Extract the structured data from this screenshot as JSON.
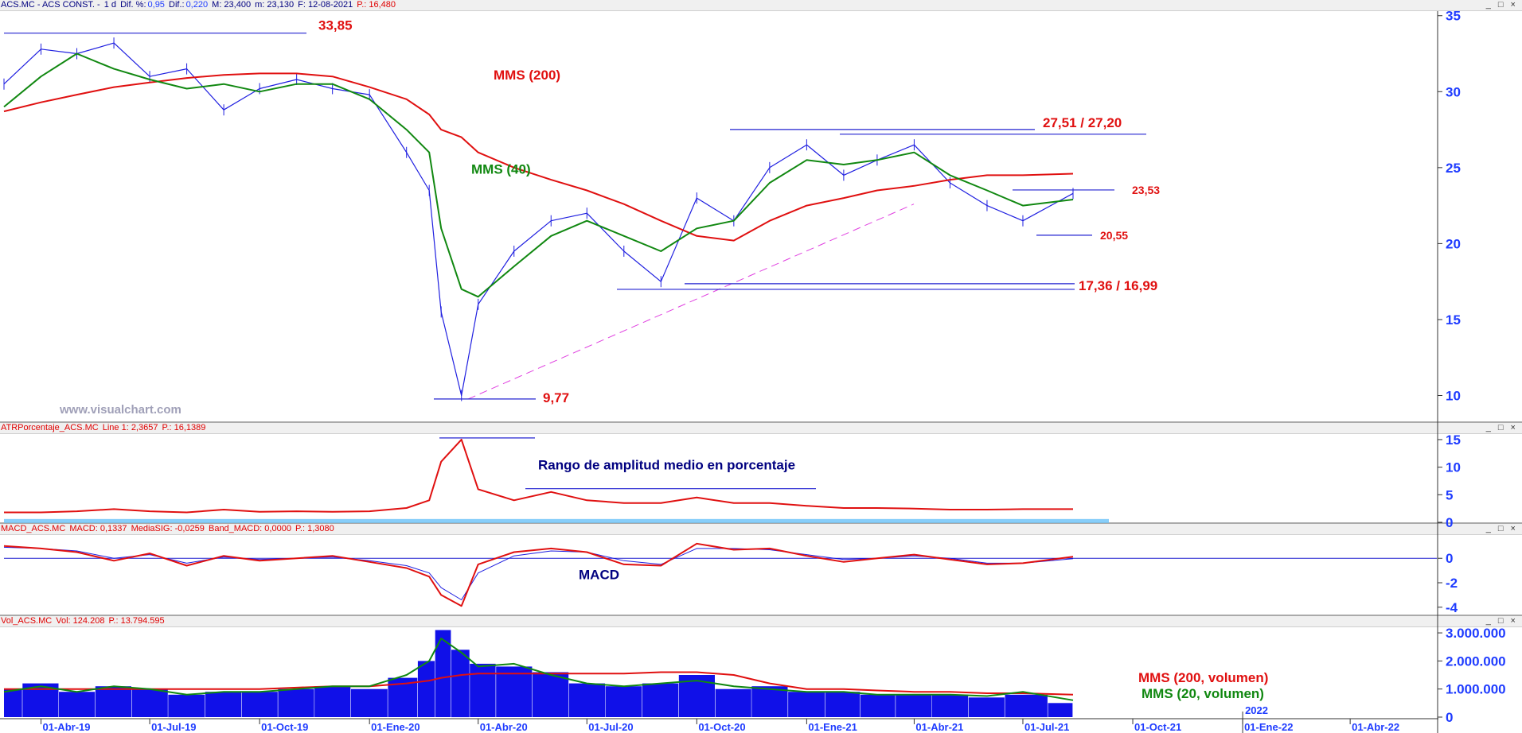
{
  "headers": {
    "price": {
      "symbol": "ACS.MC - ACS CONST. -",
      "interval": "1 d",
      "dif_pct_label": "Dif. %:",
      "dif_pct": "0,95",
      "dif_label": "Dif.:",
      "dif": "0,220",
      "max": "M: 23,400",
      "min": "m: 23,130",
      "date": "F: 12-08-2021",
      "price": "P.: 16,480"
    },
    "atr": {
      "name": "ATRPorcentaje_ACS.MC",
      "line": "Line 1: 2,3657",
      "price": "P.: 16,1389"
    },
    "macd": {
      "name": "MACD_ACS.MC",
      "macd": "MACD: 0,1337",
      "signal": "MediaSIG: -0,0259",
      "band": "Band_MACD: 0,0000",
      "price": "P.: 1,3080"
    },
    "vol": {
      "name": "Vol_ACS.MC",
      "vol": "Vol: 124.208",
      "price": "P.: 13.794.595"
    }
  },
  "window_buttons": "_ □ ×",
  "watermark": "www.visualchart.com",
  "chart_data": [
    {
      "panel": "price",
      "type": "line",
      "x": [
        "2019-03-01",
        "2019-04-01",
        "2019-05-01",
        "2019-06-01",
        "2019-07-01",
        "2019-08-01",
        "2019-09-01",
        "2019-10-01",
        "2019-11-01",
        "2019-12-01",
        "2020-01-01",
        "2020-02-01",
        "2020-02-20",
        "2020-03-01",
        "2020-03-18",
        "2020-04-01",
        "2020-05-01",
        "2020-06-01",
        "2020-07-01",
        "2020-08-01",
        "2020-09-01",
        "2020-10-01",
        "2020-11-01",
        "2020-12-01",
        "2021-01-01",
        "2021-02-01",
        "2021-03-01",
        "2021-04-01",
        "2021-05-01",
        "2021-06-01",
        "2021-07-01",
        "2021-08-12"
      ],
      "x_ticks": [
        "01-Abr-19",
        "01-Jul-19",
        "01-Oct-19",
        "01-Ene-20",
        "01-Abr-20",
        "01-Jul-20",
        "01-Oct-20",
        "01-Ene-21",
        "01-Abr-21",
        "01-Jul-21",
        "01-Oct-21",
        "2022",
        "01-Ene-22",
        "01-Abr-22"
      ],
      "y_ticks": [
        10,
        15,
        20,
        25,
        30,
        35
      ],
      "ylim": [
        8.3,
        35.3
      ],
      "series": [
        {
          "name": "",
          "color": "#1f1fe0",
          "values": [
            30.5,
            32.8,
            32.5,
            33.2,
            31.0,
            31.5,
            28.8,
            30.2,
            30.8,
            30.2,
            29.8,
            26.0,
            23.5,
            15.5,
            10.0,
            16.0,
            19.5,
            21.5,
            22.0,
            19.5,
            17.5,
            23.0,
            21.5,
            25.0,
            26.5,
            24.5,
            25.5,
            26.5,
            24.0,
            22.5,
            21.5,
            23.3
          ]
        },
        {
          "name": "MMS (40)",
          "color": "#118811",
          "values": [
            29.0,
            31.0,
            32.5,
            31.5,
            30.8,
            30.2,
            30.5,
            30.0,
            30.5,
            30.5,
            29.5,
            27.5,
            26.0,
            21.0,
            17.0,
            16.5,
            18.5,
            20.5,
            21.5,
            20.5,
            19.5,
            21.0,
            21.5,
            24.0,
            25.5,
            25.2,
            25.5,
            26.0,
            24.5,
            23.5,
            22.5,
            22.9
          ]
        },
        {
          "name": "MMS (200)",
          "color": "#e01010",
          "values": [
            28.7,
            29.3,
            29.8,
            30.3,
            30.6,
            30.9,
            31.1,
            31.2,
            31.2,
            31.0,
            30.3,
            29.5,
            28.5,
            27.5,
            27.0,
            26.0,
            25.0,
            24.2,
            23.5,
            22.6,
            21.5,
            20.5,
            20.2,
            21.5,
            22.5,
            23.0,
            23.5,
            23.8,
            24.2,
            24.5,
            24.5,
            24.6
          ]
        }
      ],
      "levels": [
        {
          "label": "33,85",
          "value": 33.85
        },
        {
          "label": "27,51 / 27,20",
          "values": [
            27.51,
            27.2
          ]
        },
        {
          "label": "23,53",
          "value": 23.53
        },
        {
          "label": "20,55",
          "value": 20.55
        },
        {
          "label": "17,36 / 16,99",
          "values": [
            17.36,
            16.99
          ]
        },
        {
          "label": "9,77",
          "value": 9.77
        }
      ],
      "annotations": [
        "MMS (200)",
        "MMS (40)"
      ]
    },
    {
      "panel": "atr",
      "type": "line",
      "y_ticks": [
        0,
        5,
        10,
        15
      ],
      "ylim": [
        0,
        16
      ],
      "annotation": "Rango de amplitud medio en porcentaje",
      "series": [
        {
          "name": "",
          "color": "#e01010",
          "values": [
            1.8,
            1.8,
            2.0,
            2.4,
            2.0,
            1.8,
            2.3,
            1.9,
            2.0,
            1.9,
            2.0,
            2.6,
            4.0,
            11.0,
            15.0,
            6.0,
            4.0,
            5.5,
            4.0,
            3.5,
            3.5,
            4.5,
            3.5,
            3.5,
            3.0,
            2.6,
            2.6,
            2.5,
            2.3,
            2.3,
            2.4,
            2.4
          ]
        }
      ]
    },
    {
      "panel": "macd",
      "type": "line",
      "y_ticks": [
        -4,
        -2,
        0
      ],
      "ylim": [
        -4.6,
        1.9
      ],
      "annotation": "MACD",
      "series": [
        {
          "name": "",
          "color": "#e01010",
          "values": [
            1.0,
            0.8,
            0.5,
            -0.2,
            0.4,
            -0.6,
            0.2,
            -0.2,
            0.0,
            0.2,
            -0.3,
            -0.8,
            -1.5,
            -3.0,
            -3.9,
            -0.5,
            0.5,
            0.8,
            0.5,
            -0.5,
            -0.6,
            1.2,
            0.7,
            0.8,
            0.2,
            -0.3,
            0.0,
            0.3,
            -0.1,
            -0.5,
            -0.4,
            0.13
          ]
        },
        {
          "name": "",
          "color": "#1f1fe0",
          "values": [
            0.9,
            0.8,
            0.6,
            0.0,
            0.3,
            -0.4,
            0.1,
            -0.1,
            0.0,
            0.1,
            -0.2,
            -0.6,
            -1.2,
            -2.4,
            -3.4,
            -1.2,
            0.2,
            0.6,
            0.5,
            -0.2,
            -0.5,
            0.8,
            0.8,
            0.7,
            0.3,
            -0.1,
            0.0,
            0.2,
            0.0,
            -0.4,
            -0.4,
            -0.03
          ]
        }
      ]
    },
    {
      "panel": "volume",
      "type": "bar",
      "y_ticks": [
        0,
        1000000,
        2000000,
        3000000
      ],
      "y_tick_labels": [
        "0",
        "1.000.000",
        "2.000.000",
        "3.000.000"
      ],
      "ylim": [
        0,
        3200000
      ],
      "bars": [
        1.0,
        1.2,
        0.9,
        1.1,
        1.0,
        0.8,
        0.9,
        0.9,
        1.0,
        1.1,
        1.0,
        1.4,
        2.0,
        3.1,
        2.4,
        1.9,
        1.8,
        1.6,
        1.2,
        1.1,
        1.2,
        1.5,
        1.0,
        1.1,
        0.9,
        0.9,
        0.8,
        0.8,
        0.8,
        0.7,
        0.8,
        0.5
      ],
      "bars_scale": 1000000,
      "series": [
        {
          "name": "MMS (200, volumen)",
          "color": "#e01010",
          "values": [
            1.0,
            1.0,
            1.0,
            1.0,
            1.0,
            1.0,
            1.0,
            1.0,
            1.05,
            1.1,
            1.1,
            1.2,
            1.3,
            1.4,
            1.5,
            1.55,
            1.55,
            1.55,
            1.55,
            1.55,
            1.6,
            1.6,
            1.5,
            1.2,
            1.0,
            1.0,
            0.95,
            0.9,
            0.9,
            0.85,
            0.85,
            0.8
          ]
        },
        {
          "name": "MMS (20, volumen)",
          "color": "#118811",
          "values": [
            0.9,
            1.1,
            0.9,
            1.1,
            1.0,
            0.8,
            0.9,
            0.9,
            1.0,
            1.1,
            1.1,
            1.5,
            2.0,
            2.8,
            2.3,
            1.8,
            1.9,
            1.5,
            1.2,
            1.1,
            1.2,
            1.3,
            1.1,
            1.0,
            0.9,
            0.9,
            0.8,
            0.8,
            0.8,
            0.75,
            0.9,
            0.6
          ]
        }
      ]
    }
  ]
}
